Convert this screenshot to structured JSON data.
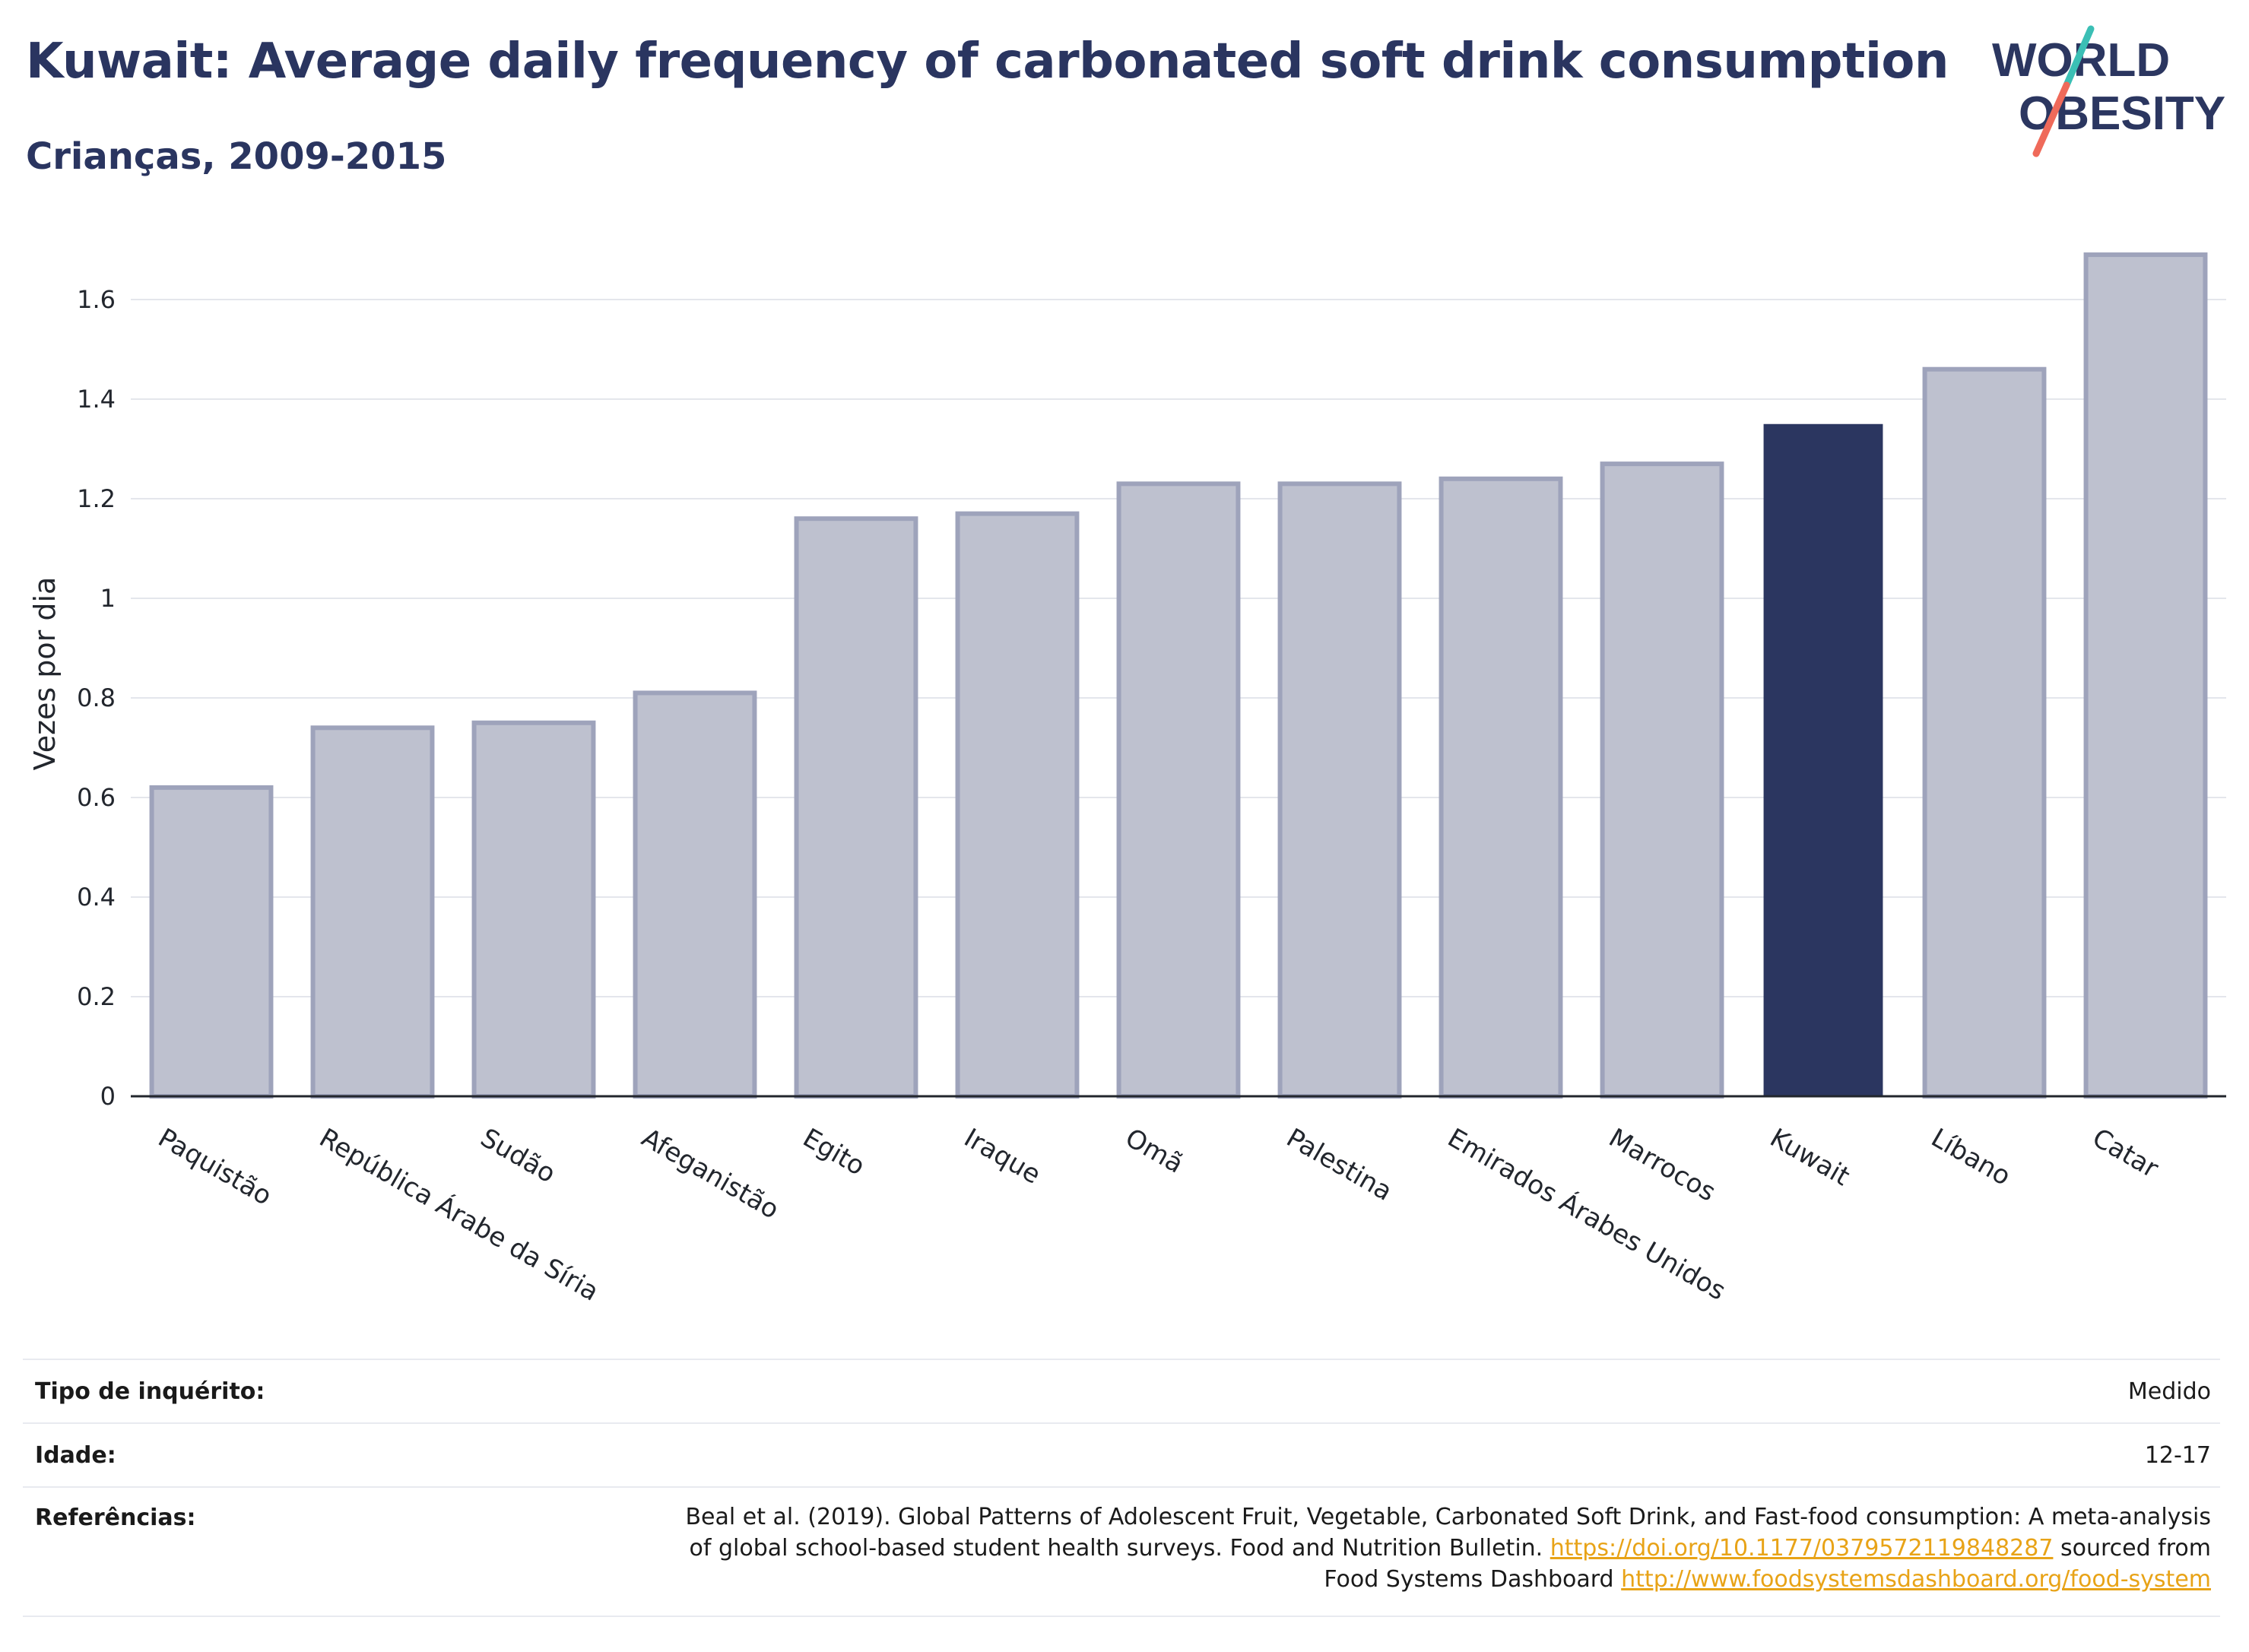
{
  "header": {
    "title": "Kuwait: Average daily frequency of carbonated soft drink consumption",
    "subtitle": "Crianças, 2009-2015"
  },
  "logo": {
    "line1": "WORLD",
    "line2": "OBESITY"
  },
  "chart_data": {
    "type": "bar",
    "title": "Kuwait: Average daily frequency of carbonated soft drink consumption",
    "subtitle": "Crianças, 2009-2015",
    "ylabel": "Vezes por dia",
    "xlabel": "",
    "ylim": [
      0,
      1.75
    ],
    "yticks": [
      0,
      0.2,
      0.4,
      0.6,
      0.8,
      1,
      1.2,
      1.4,
      1.6
    ],
    "ytick_labels": [
      "0",
      "0.2",
      "0.4",
      "0.6",
      "0.8",
      "1",
      "1.2",
      "1.4",
      "1.6"
    ],
    "grid": true,
    "categories": [
      "Paquistão",
      "República Árabe da Síria",
      "Sudão",
      "Afeganistão",
      "Egito",
      "Iraque",
      "Omã",
      "Palestina",
      "Emirados Árabes Unidos",
      "Marrocos",
      "Kuwait",
      "Líbano",
      "Catar"
    ],
    "values": [
      0.62,
      0.74,
      0.75,
      0.81,
      1.16,
      1.17,
      1.23,
      1.23,
      1.24,
      1.27,
      1.35,
      1.46,
      1.69
    ],
    "highlight": "Kuwait",
    "colors": {
      "highlight": "#2b3660",
      "others": "#bec1cf",
      "others_border": "#9ea3bb"
    }
  },
  "footer": {
    "survey_type_label": "Tipo de inquérito:",
    "survey_type_value": "Medido",
    "age_label": "Idade:",
    "age_value": "12-17",
    "references_label": "Referências:",
    "references_line1": "Beal et al. (2019). Global Patterns of Adolescent Fruit, Vegetable, Carbonated Soft Drink, and Fast-food consumption: A meta-analysis",
    "references_line2_prefix": "of global school-based student health surveys. Food and Nutrition Bulletin.",
    "references_doi": "https://doi.org/10.1177/0379572119848287",
    "references_line2_suffix": "sourced from",
    "references_line3_prefix": "Food Systems Dashboard",
    "references_url": "http://www.foodsystemsdashboard.org/food-system"
  }
}
